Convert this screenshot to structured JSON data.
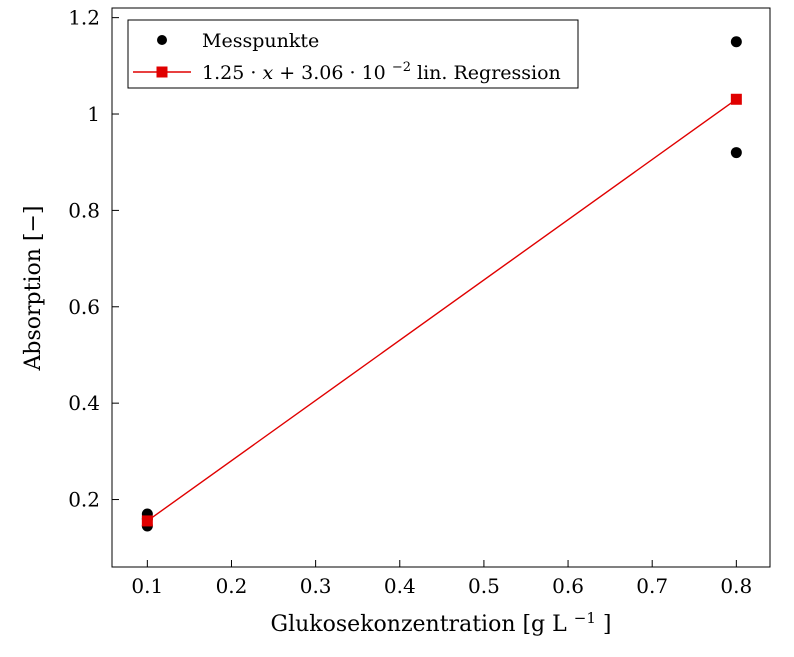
{
  "chart_data": {
    "type": "scatter",
    "title": "",
    "xlabel": "Glukosekonzentration [g L^-1]",
    "ylabel": "Absorption [-]",
    "xlim": [
      0.058,
      0.84
    ],
    "ylim": [
      0.06,
      1.22
    ],
    "xticks": [
      0.1,
      0.2,
      0.3,
      0.4,
      0.5,
      0.6,
      0.7,
      0.8
    ],
    "yticks": [
      0.2,
      0.4,
      0.6,
      0.8,
      1,
      1.2
    ],
    "grid": false,
    "legend_position": "top-left",
    "series": [
      {
        "name": "Messpunkte",
        "type": "scatter",
        "marker": "circle",
        "color": "#000000",
        "points": [
          [
            0.1,
            0.145
          ],
          [
            0.1,
            0.16
          ],
          [
            0.1,
            0.17
          ],
          [
            0.8,
            0.92
          ],
          [
            0.8,
            1.15
          ]
        ]
      },
      {
        "name": "1.25 * x + 3.06 * 10^-2 lin. Regression",
        "type": "line",
        "marker": "square",
        "color": "#e00000",
        "equation": {
          "slope": 1.25,
          "intercept": 0.0306
        },
        "points": [
          [
            0.1,
            0.1556
          ],
          [
            0.8,
            1.0306
          ]
        ]
      }
    ]
  },
  "axes": {
    "ylabel": "Absorption [−]",
    "xlabel_pre": "Glukosekonzentration [g L",
    "xlabel_sup": "−1",
    "xlabel_post": "]"
  },
  "legend": {
    "row1": "Messpunkte",
    "row2_pre1": "1.25 · ",
    "row2_x": "x",
    "row2_pre2": " + 3.06 · 10",
    "row2_sup": "−2",
    "row2_post": " lin. Regression"
  },
  "colors": {
    "points": "#000000",
    "regression": "#e00000",
    "frame": "#000000"
  }
}
